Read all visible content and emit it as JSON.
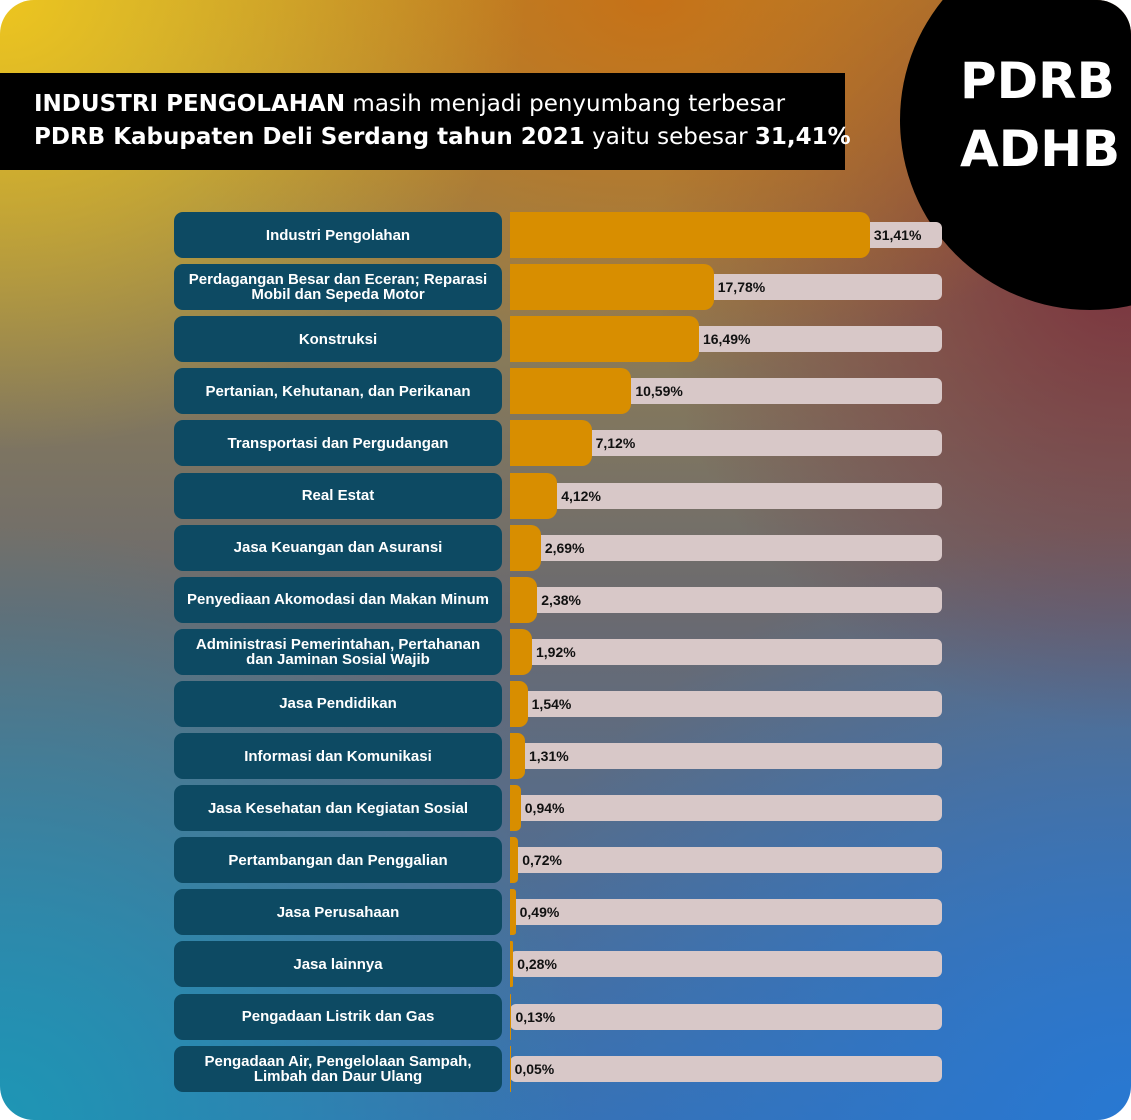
{
  "chart_data": {
    "type": "bar",
    "orientation": "horizontal",
    "title_lines": [
      [
        {
          "text": "INDUSTRI PENGOLAHAN",
          "bold": true
        },
        {
          "text": " masih menjadi penyumbang terbesar",
          "bold": false
        }
      ],
      [
        {
          "text": "PDRB Kabupaten Deli Serdang tahun 2021",
          "bold": true
        },
        {
          "text": " yaitu sebesar ",
          "bold": false
        },
        {
          "text": "31,41%",
          "bold": true
        }
      ]
    ],
    "badge": [
      "PDRB",
      "ADHB"
    ],
    "categories": [
      "Industri Pengolahan",
      "Perdagangan Besar dan Eceran; Reparasi Mobil dan Sepeda Motor",
      "Konstruksi",
      "Pertanian, Kehutanan, dan Perikanan",
      "Transportasi dan Pergudangan",
      "Real Estat",
      "Jasa Keuangan dan Asuransi",
      "Penyediaan Akomodasi dan Makan Minum",
      "Administrasi Pemerintahan, Pertahanan dan Jaminan Sosial Wajib",
      "Jasa Pendidikan",
      "Informasi dan Komunikasi",
      "Jasa Kesehatan dan Kegiatan Sosial",
      "Pertambangan dan Penggalian",
      "Jasa Perusahaan",
      "Jasa lainnya",
      "Pengadaan Listrik dan Gas",
      "Pengadaan Air, Pengelolaan Sampah, Limbah dan Daur Ulang"
    ],
    "values": [
      31.41,
      17.78,
      16.49,
      10.59,
      7.12,
      4.12,
      2.69,
      2.38,
      1.92,
      1.54,
      1.31,
      0.94,
      0.72,
      0.49,
      0.28,
      0.13,
      0.05
    ],
    "value_labels": [
      "31,41%",
      "17,78%",
      "16,49%",
      "10,59%",
      "7,12%",
      "4,12%",
      "2,69%",
      "2,38%",
      "1,92%",
      "1,54%",
      "1,31%",
      "0,94%",
      "0,72%",
      "0,49%",
      "0,28%",
      "0,13%",
      "0,05%"
    ],
    "xlim": [
      0,
      37.7
    ],
    "color": "#d88e00"
  }
}
